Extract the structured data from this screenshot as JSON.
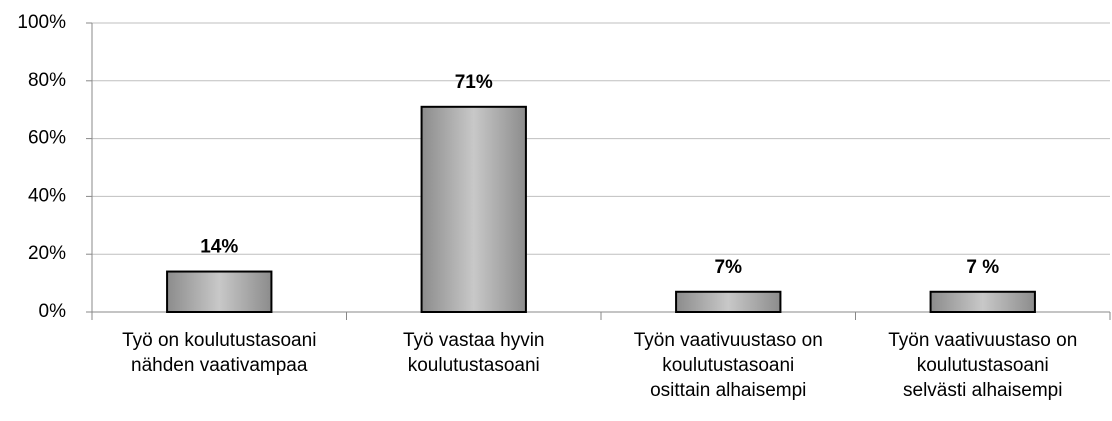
{
  "chart_data": {
    "type": "bar",
    "categories": [
      "Työ on koulutustasoani\nnähden vaativampaa",
      "Työ vastaa hyvin\nkoulutustasoani",
      "Työn vaativuustaso on\nkoulutustasoani\nosittain alhaisempi",
      "Työn vaativuustaso on\nkoulutustasoani\nselvästi alhaisempi"
    ],
    "values": [
      14,
      71,
      7,
      7
    ],
    "value_labels": [
      "14%",
      "71%",
      "7%",
      "7 %"
    ],
    "color": "#b3b3b3",
    "ylim": [
      0,
      100
    ],
    "yticks": [
      {
        "value": 0,
        "label": "0%"
      },
      {
        "value": 20,
        "label": "20%"
      },
      {
        "value": 40,
        "label": "40%"
      },
      {
        "value": 60,
        "label": "60%"
      },
      {
        "value": 80,
        "label": "80%"
      },
      {
        "value": 100,
        "label": "100%"
      }
    ],
    "grid": true
  }
}
